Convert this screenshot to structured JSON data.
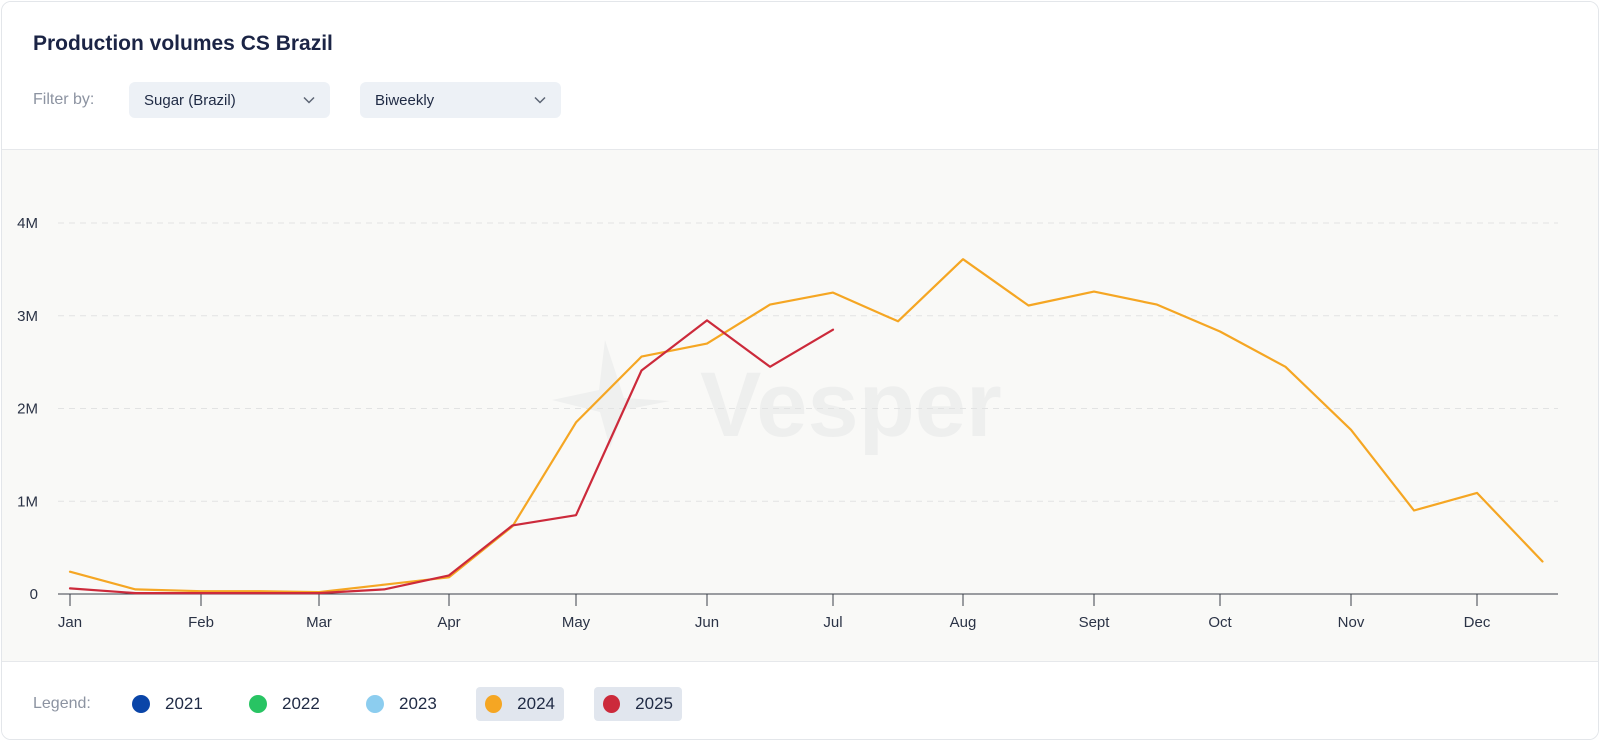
{
  "header": {
    "title": "Production volumes CS Brazil",
    "filter_label": "Filter by:",
    "product_select": "Sugar (Brazil)",
    "period_select": "Biweekly"
  },
  "watermark": "Vesper",
  "legend": {
    "label": "Legend:",
    "items": [
      {
        "label": "2021",
        "color": "#0a45a8",
        "active": false
      },
      {
        "label": "2022",
        "color": "#28c463",
        "active": false
      },
      {
        "label": "2023",
        "color": "#8ccdef",
        "active": false
      },
      {
        "label": "2024",
        "color": "#f5a623",
        "active": true
      },
      {
        "label": "2025",
        "color": "#cc2a3b",
        "active": true
      }
    ]
  },
  "chart_data": {
    "type": "line",
    "x_labels": [
      "Jan",
      "Feb",
      "Mar",
      "Apr",
      "May",
      "Jun",
      "Jul",
      "Aug",
      "Sept",
      "Oct",
      "Nov",
      "Dec"
    ],
    "y_ticks": [
      0,
      1000000,
      2000000,
      3000000,
      4000000
    ],
    "y_tick_labels": [
      "0",
      "1M",
      "2M",
      "3M",
      "4M"
    ],
    "ylim": [
      0,
      4000000
    ],
    "grid": "horizontal dashed",
    "series": [
      {
        "name": "2024",
        "color": "#f5a623",
        "x": [
          0,
          0.5,
          1,
          1.5,
          2,
          2.5,
          3,
          3.5,
          4,
          4.5,
          5,
          5.5,
          6,
          6.5,
          7,
          7.5,
          8,
          8.5,
          9,
          9.5,
          10,
          10.5,
          11,
          11.5
        ],
        "values": [
          240000,
          50000,
          30000,
          30000,
          20000,
          100000,
          180000,
          730000,
          1850000,
          2560000,
          2700000,
          3120000,
          3250000,
          2940000,
          3610000,
          3110000,
          3260000,
          3120000,
          2830000,
          2450000,
          1770000,
          900000,
          1090000,
          350000
        ]
      },
      {
        "name": "2025",
        "color": "#cc2a3b",
        "x": [
          0,
          0.5,
          1,
          1.5,
          2,
          2.5,
          3,
          3.5,
          4,
          4.5,
          5,
          5.5,
          6
        ],
        "values": [
          60000,
          10000,
          10000,
          10000,
          10000,
          50000,
          200000,
          740000,
          850000,
          2410000,
          2950000,
          2450000,
          2850000
        ]
      }
    ]
  }
}
